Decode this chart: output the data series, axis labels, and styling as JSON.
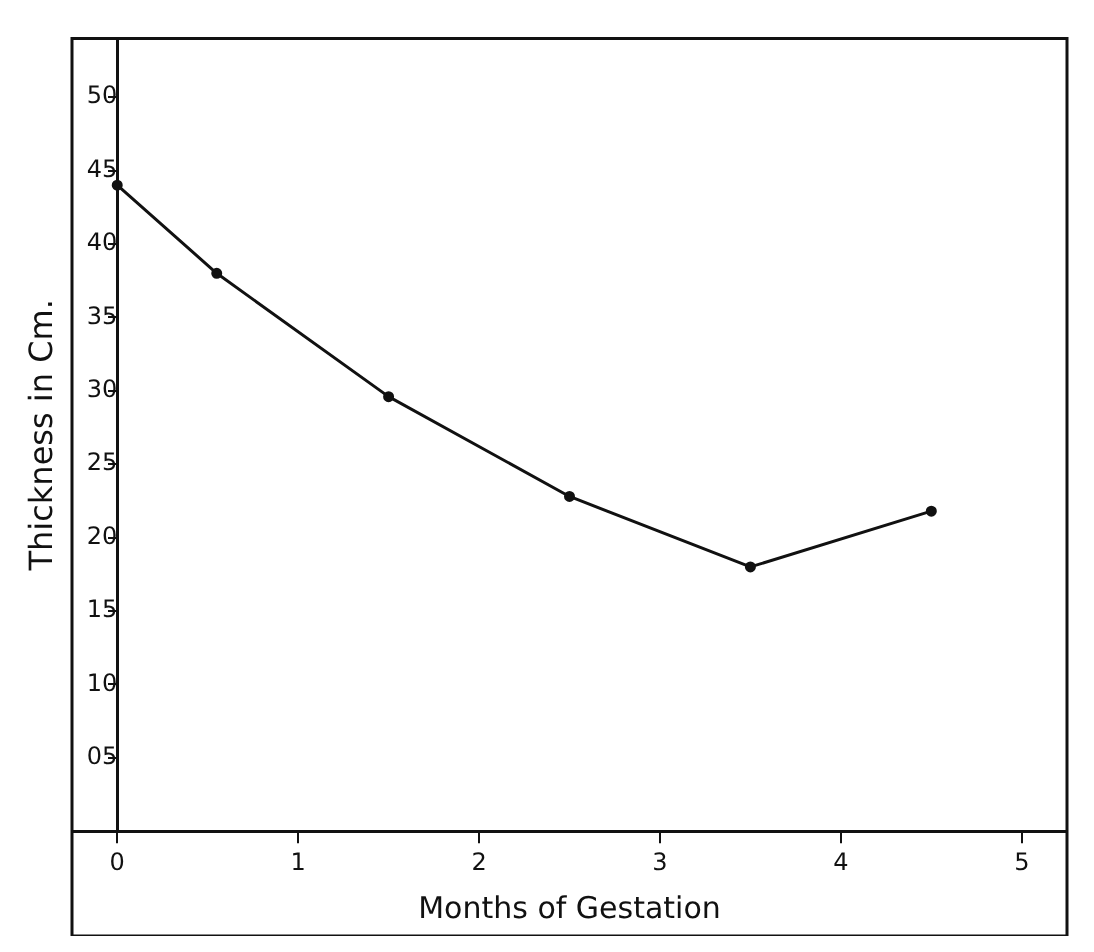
{
  "chart_data": {
    "type": "line",
    "xlabel": "Months of Gestation",
    "ylabel": "Thickness in Cm.",
    "series": [
      {
        "color": "#111111",
        "x": [
          0,
          0.55,
          1.5,
          2.5,
          3.5,
          4.5
        ],
        "values": [
          44,
          38,
          29.6,
          22.8,
          18,
          21.8
        ]
      }
    ],
    "xlim": [
      -0.25,
      5.25
    ],
    "xticks": [
      0,
      1,
      2,
      3,
      4,
      5
    ],
    "ylim": [
      0,
      54
    ],
    "yticks": [
      {
        "value": 5,
        "label": "05"
      },
      10,
      15,
      20,
      25,
      30,
      35,
      40,
      45,
      50
    ],
    "grid": false,
    "legend": false,
    "marker": "circle",
    "line_style": "solid"
  }
}
